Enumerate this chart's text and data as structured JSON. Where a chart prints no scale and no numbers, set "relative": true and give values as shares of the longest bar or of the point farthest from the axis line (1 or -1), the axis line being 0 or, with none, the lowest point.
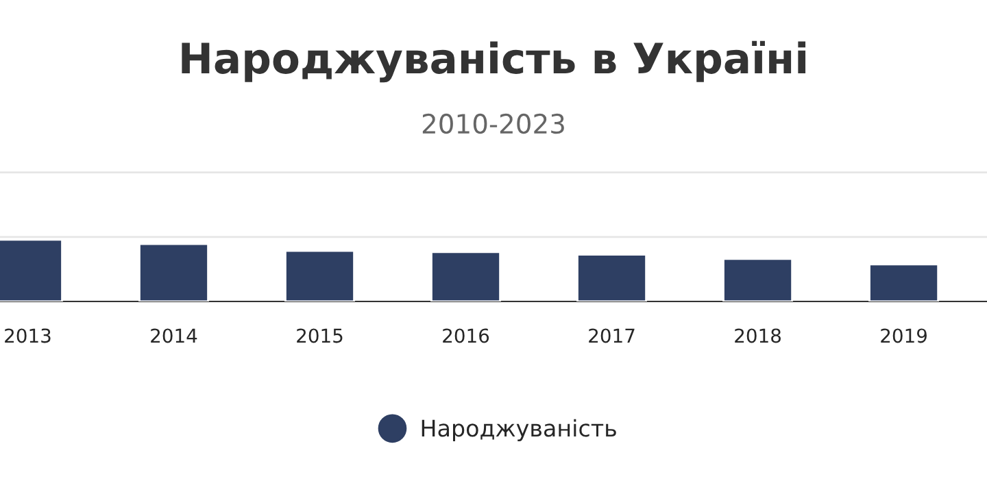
{
  "chart_data": {
    "type": "bar",
    "title": "Народжуваність в Україні",
    "subtitle": "2010-2023",
    "categories": [
      "2013",
      "2014",
      "2015",
      "2016",
      "2017",
      "2018",
      "2019"
    ],
    "series": [
      {
        "name": "Народжуваність",
        "color": "#2e3f63",
        "values": [
          1,
          0.93,
          0.82,
          0.8,
          0.76,
          0.69,
          0.6
        ]
      }
    ],
    "relative": true,
    "grid": "y",
    "legend": "bottom"
  }
}
